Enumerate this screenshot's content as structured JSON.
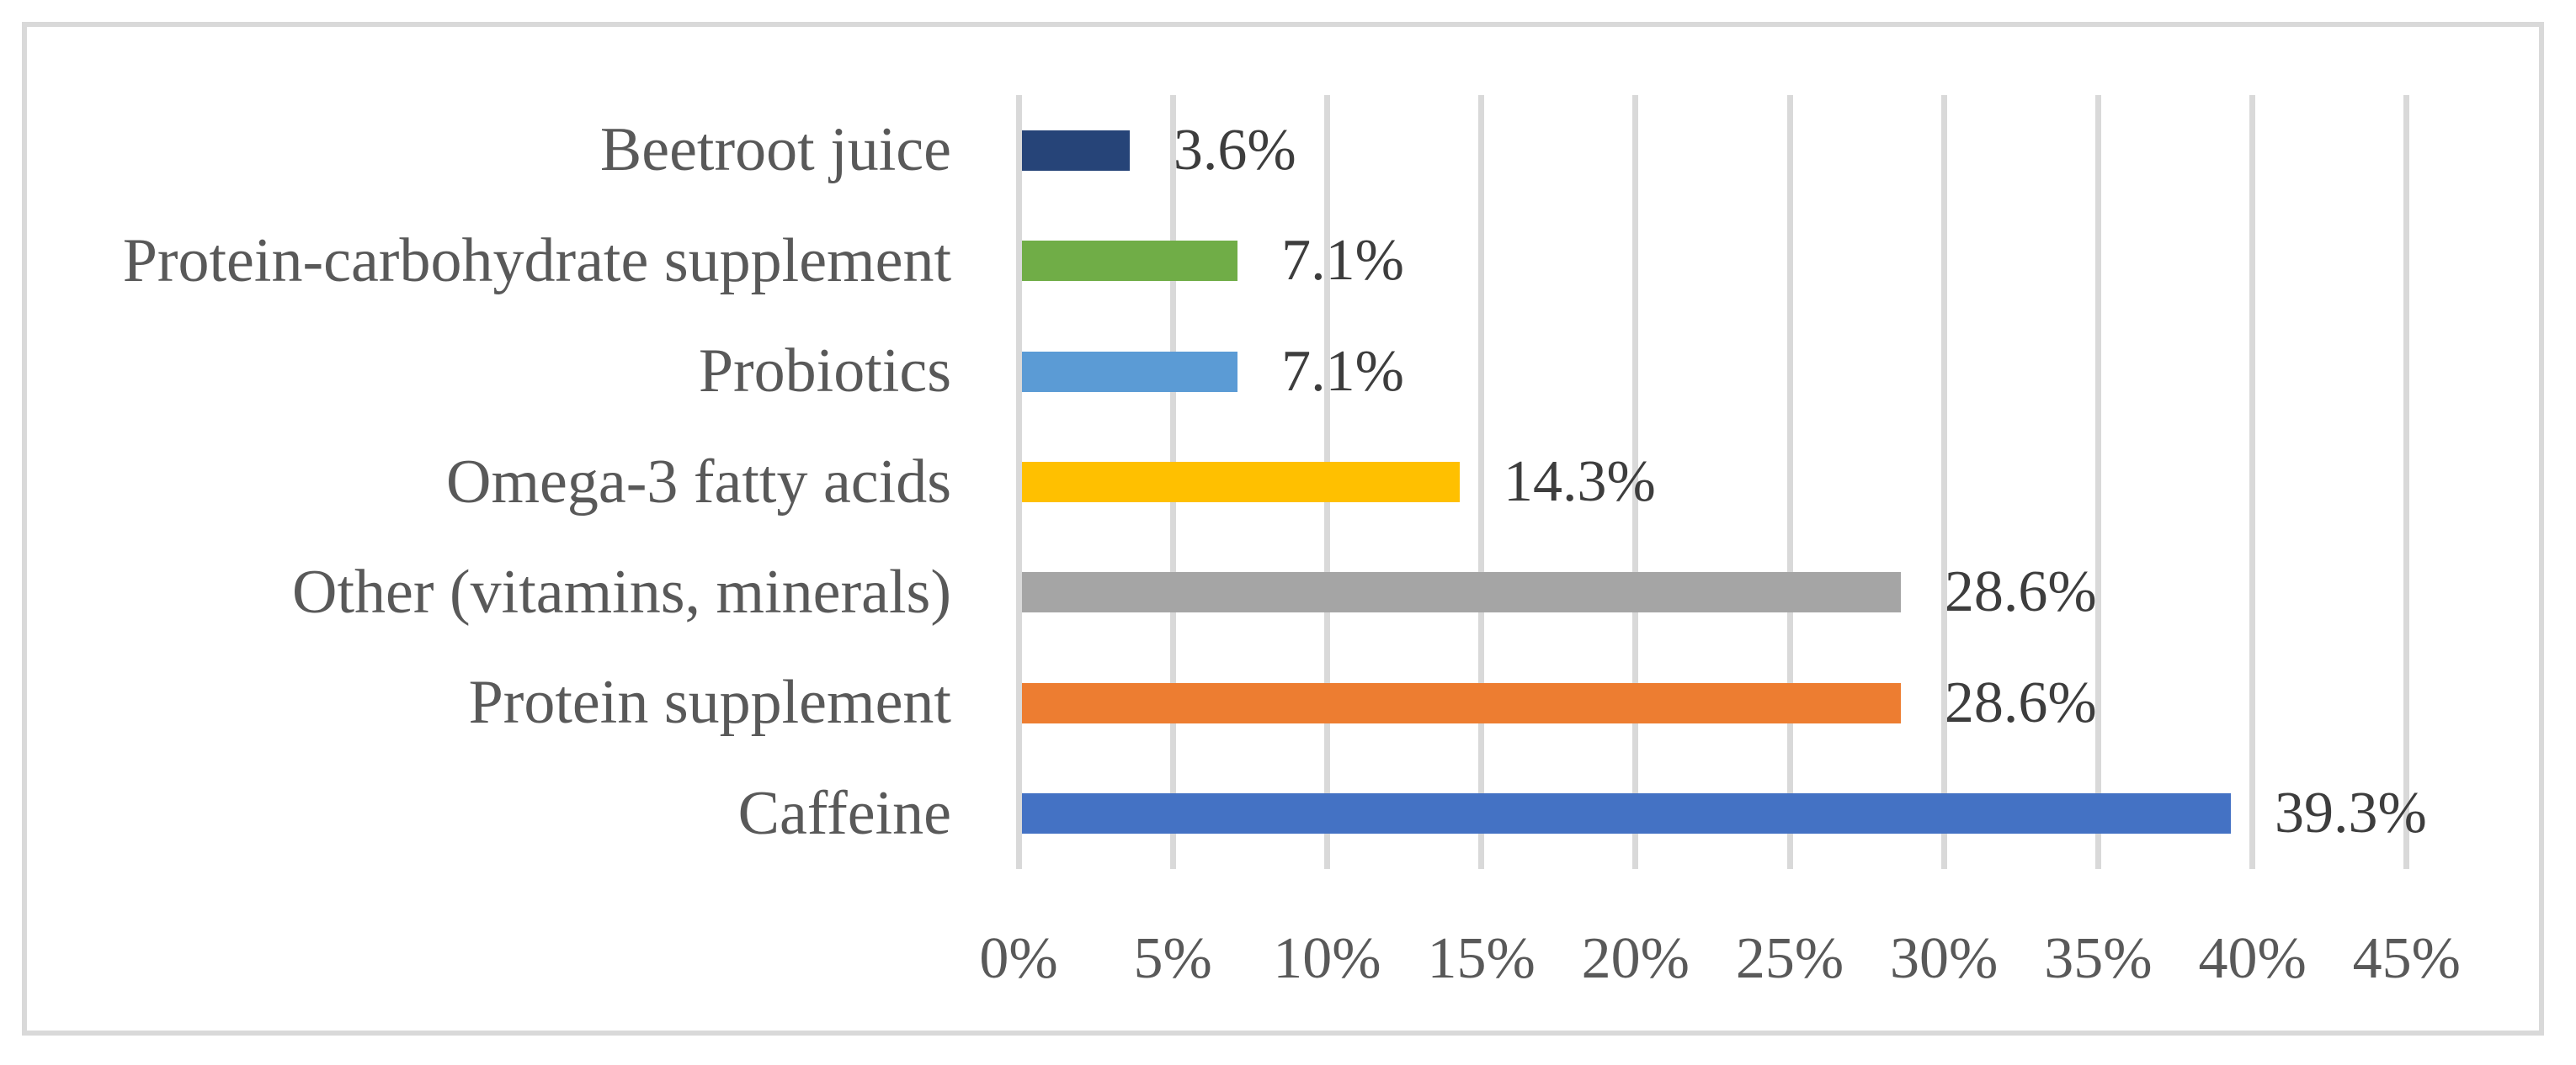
{
  "figure": {
    "background": "#FFFFFF",
    "border_color": "#D9D9D9"
  },
  "chart_data": {
    "type": "bar",
    "orientation": "horizontal",
    "title": "",
    "xlabel": "",
    "ylabel": "",
    "grid": true,
    "gridline_color": "#D9D9D9",
    "category_label_color": "#595959",
    "value_label_color": "#3D3D3D",
    "tick_label_color": "#595959",
    "xlim": [
      0,
      45
    ],
    "x_ticks": [
      {
        "value": 0,
        "label": "0%"
      },
      {
        "value": 5,
        "label": "5%"
      },
      {
        "value": 10,
        "label": "10%"
      },
      {
        "value": 15,
        "label": "15%"
      },
      {
        "value": 20,
        "label": "20%"
      },
      {
        "value": 25,
        "label": "25%"
      },
      {
        "value": 30,
        "label": "30%"
      },
      {
        "value": 35,
        "label": "35%"
      },
      {
        "value": 40,
        "label": "40%"
      },
      {
        "value": 45,
        "label": "45%"
      }
    ],
    "series": [
      {
        "category": "Beetroot juice",
        "value": 3.6,
        "data_label": "3.6%",
        "color": "#264478"
      },
      {
        "category": "Protein-carbohydrate supplement",
        "value": 7.1,
        "data_label": "7.1%",
        "color": "#70AD47"
      },
      {
        "category": "Probiotics",
        "value": 7.1,
        "data_label": "7.1%",
        "color": "#5B9BD5"
      },
      {
        "category": "Omega-3 fatty acids",
        "value": 14.3,
        "data_label": "14.3%",
        "color": "#FFC000"
      },
      {
        "category": "Other (vitamins, minerals)",
        "value": 28.6,
        "data_label": "28.6%",
        "color": "#A5A5A5"
      },
      {
        "category": "Protein supplement",
        "value": 28.6,
        "data_label": "28.6%",
        "color": "#ED7D31"
      },
      {
        "category": "Caffeine",
        "value": 39.3,
        "data_label": "39.3%",
        "color": "#4472C4"
      }
    ]
  }
}
